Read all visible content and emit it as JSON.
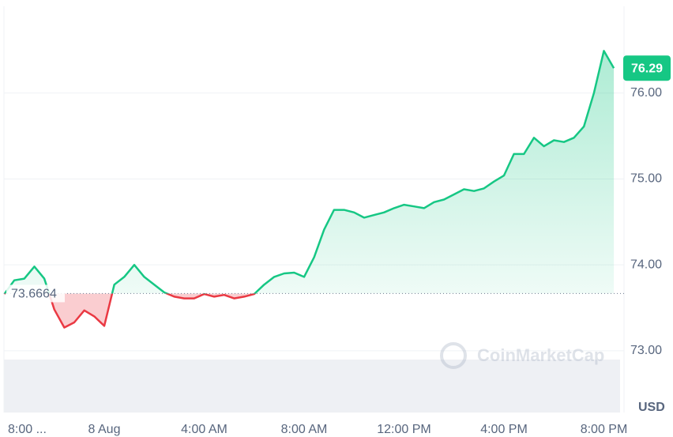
{
  "chart_data": {
    "type": "line",
    "categories": [
      "8:00 ...",
      null,
      null,
      null,
      null,
      null,
      null,
      null,
      null,
      null,
      "8 Aug",
      null,
      null,
      null,
      null,
      null,
      null,
      null,
      null,
      null,
      "4:00 AM",
      null,
      null,
      null,
      null,
      null,
      null,
      null,
      null,
      null,
      "8:00 AM",
      null,
      null,
      null,
      null,
      null,
      null,
      null,
      null,
      null,
      "12:00 PM",
      null,
      null,
      null,
      null,
      null,
      null,
      null,
      null,
      null,
      "4:00 PM",
      null,
      null,
      null,
      null,
      null,
      null,
      null,
      null,
      null,
      "8:00 PM",
      null
    ],
    "values": [
      73.66,
      73.82,
      73.84,
      73.98,
      73.84,
      73.48,
      73.27,
      73.33,
      73.47,
      73.4,
      73.29,
      73.77,
      73.86,
      74.0,
      73.86,
      73.77,
      73.68,
      73.63,
      73.61,
      73.61,
      73.66,
      73.63,
      73.65,
      73.61,
      73.63,
      73.66,
      73.77,
      73.86,
      73.9,
      73.91,
      73.86,
      74.09,
      74.41,
      74.64,
      74.64,
      74.61,
      74.55,
      74.58,
      74.61,
      74.66,
      74.7,
      74.68,
      74.66,
      74.73,
      74.76,
      74.82,
      74.88,
      74.86,
      74.89,
      74.97,
      75.04,
      75.29,
      75.29,
      75.48,
      75.38,
      75.45,
      75.43,
      75.48,
      75.61,
      76.0,
      76.49,
      76.29
    ],
    "color": "#16c784",
    "down_color": "#ea3943",
    "baseline": 73.6664,
    "last_price": 76.29,
    "y_unit": "USD",
    "watermark": "CoinMarketCap",
    "ylim": [
      72.3,
      77.0
    ],
    "yticks": [
      {
        "value": 73,
        "label": "73.00"
      },
      {
        "value": 74,
        "label": "74.00"
      },
      {
        "value": 75,
        "label": "75.00"
      },
      {
        "value": 76,
        "label": "76.00"
      }
    ],
    "grid": true
  }
}
